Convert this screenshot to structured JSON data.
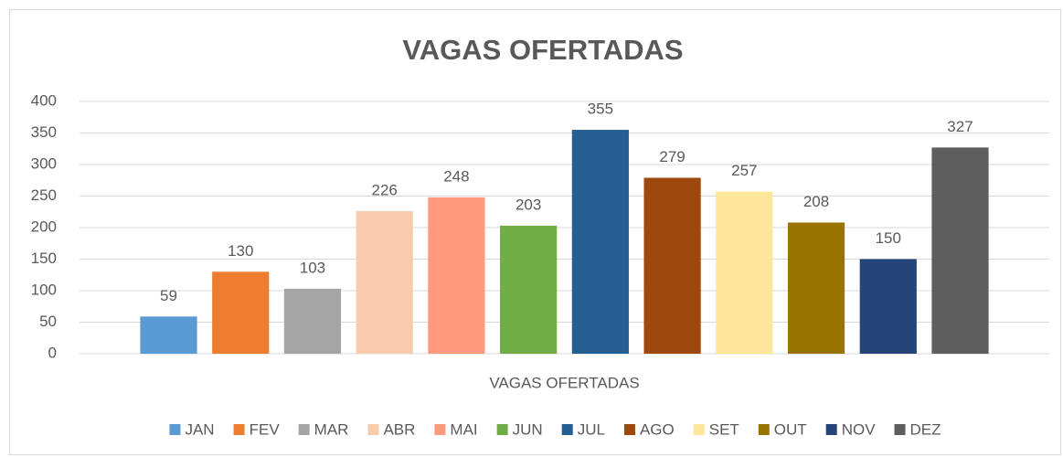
{
  "chart_data": {
    "type": "bar",
    "title": "VAGAS OFERTADAS",
    "categories": [
      "VAGAS OFERTADAS"
    ],
    "series": [
      {
        "name": "JAN",
        "color": "#5b9bd5",
        "values": [
          59
        ]
      },
      {
        "name": "FEV",
        "color": "#ed7d31",
        "values": [
          130
        ]
      },
      {
        "name": "MAR",
        "color": "#a5a5a5",
        "values": [
          103
        ]
      },
      {
        "name": "ABR",
        "color": "#f8cbad",
        "values": [
          226
        ]
      },
      {
        "name": "MAI",
        "color": "#ff9a7f",
        "values": [
          248
        ]
      },
      {
        "name": "JUN",
        "color": "#70ad47",
        "values": [
          203
        ]
      },
      {
        "name": "JUL",
        "color": "#255e91",
        "values": [
          355
        ]
      },
      {
        "name": "AGO",
        "color": "#9e480e",
        "values": [
          279
        ]
      },
      {
        "name": "SET",
        "color": "#ffe699",
        "values": [
          257
        ]
      },
      {
        "name": "OUT",
        "color": "#997300",
        "values": [
          208
        ]
      },
      {
        "name": "NOV",
        "color": "#264478",
        "values": [
          150
        ]
      },
      {
        "name": "DEZ",
        "color": "#5e5e5e",
        "values": [
          327
        ]
      }
    ],
    "ylim": [
      0,
      400
    ],
    "yticks": [
      0,
      50,
      100,
      150,
      200,
      250,
      300,
      350,
      400
    ],
    "grid": true,
    "legend": "bottom",
    "data_labels": true
  }
}
